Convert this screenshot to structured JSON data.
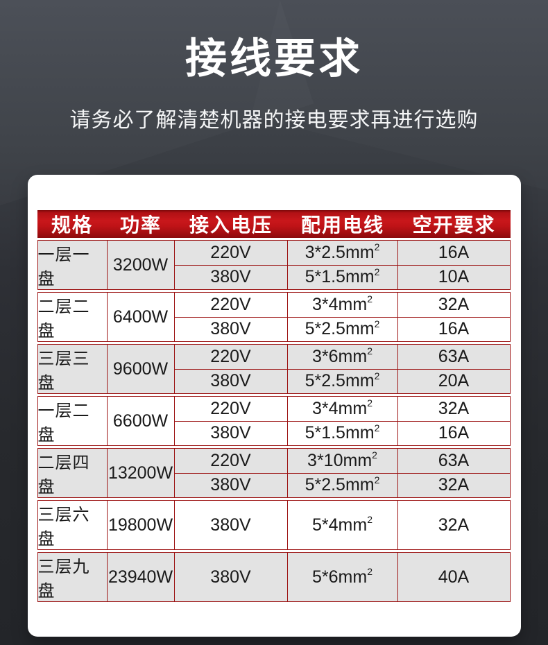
{
  "page": {
    "title": "接线要求",
    "subtitle": "请务必了解清楚机器的接电要求再进行选购"
  },
  "colors": {
    "background_dark": "#45494f",
    "header_red": "#c8161a",
    "border_red": "#9c1212",
    "row_gray": "#e3e3e3",
    "text_dark": "#1a1a1a",
    "text_white": "#ffffff"
  },
  "table": {
    "columns": [
      "规格",
      "功率",
      "接入电压",
      "配用电线",
      "空开要求"
    ],
    "rows": [
      {
        "spec": "一层一盘",
        "power": "3200W",
        "options": [
          {
            "voltage": "220V",
            "wire": "3*2.5mm",
            "sup": "2",
            "breaker": "16A"
          },
          {
            "voltage": "380V",
            "wire": "5*1.5mm",
            "sup": "2",
            "breaker": "10A"
          }
        ]
      },
      {
        "spec": "二层二盘",
        "power": "6400W",
        "options": [
          {
            "voltage": "220V",
            "wire": "3*4mm",
            "sup": "2",
            "breaker": "32A"
          },
          {
            "voltage": "380V",
            "wire": "5*2.5mm",
            "sup": "2",
            "breaker": "16A"
          }
        ]
      },
      {
        "spec": "三层三盘",
        "power": "9600W",
        "options": [
          {
            "voltage": "220V",
            "wire": "3*6mm",
            "sup": "2",
            "breaker": "63A"
          },
          {
            "voltage": "380V",
            "wire": "5*2.5mm",
            "sup": "2",
            "breaker": "20A"
          }
        ]
      },
      {
        "spec": "一层二盘",
        "power": "6600W",
        "options": [
          {
            "voltage": "220V",
            "wire": "3*4mm",
            "sup": "2",
            "breaker": "32A"
          },
          {
            "voltage": "380V",
            "wire": "5*1.5mm",
            "sup": "2",
            "breaker": "16A"
          }
        ]
      },
      {
        "spec": "二层四盘",
        "power": "13200W",
        "options": [
          {
            "voltage": "220V",
            "wire": "3*10mm",
            "sup": "2",
            "breaker": "63A"
          },
          {
            "voltage": "380V",
            "wire": "5*2.5mm",
            "sup": "2",
            "breaker": "32A"
          }
        ]
      },
      {
        "spec": "三层六盘",
        "power": "19800W",
        "options": [
          {
            "voltage": "380V",
            "wire": "5*4mm",
            "sup": "2",
            "breaker": "32A"
          }
        ]
      },
      {
        "spec": "三层九盘",
        "power": "23940W",
        "options": [
          {
            "voltage": "380V",
            "wire": "5*6mm",
            "sup": "2",
            "breaker": "40A"
          }
        ]
      }
    ]
  }
}
